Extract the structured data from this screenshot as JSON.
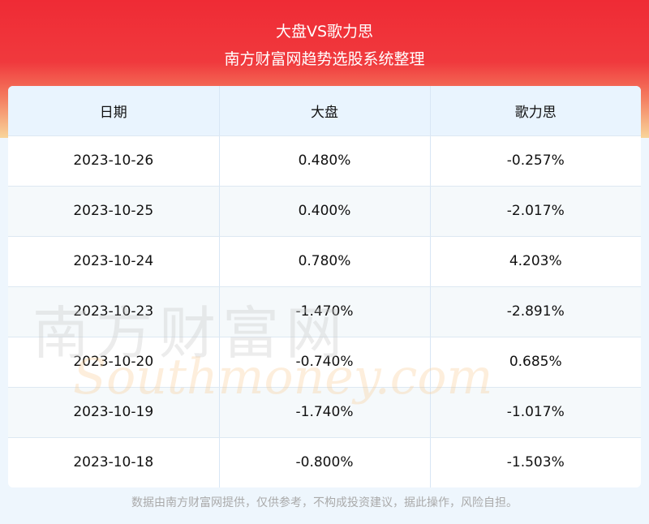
{
  "header": {
    "title": "大盘VS歌力思",
    "subtitle": "南方财富网趋势选股系统整理"
  },
  "table": {
    "columns": [
      "日期",
      "大盘",
      "歌力思"
    ],
    "rows": [
      [
        "2023-10-26",
        "0.480%",
        "-0.257%"
      ],
      [
        "2023-10-25",
        "0.400%",
        "-2.017%"
      ],
      [
        "2023-10-24",
        "0.780%",
        "4.203%"
      ],
      [
        "2023-10-23",
        "-1.470%",
        "-2.891%"
      ],
      [
        "2023-10-20",
        "-0.740%",
        "0.685%"
      ],
      [
        "2023-10-19",
        "-1.740%",
        "-1.017%"
      ],
      [
        "2023-10-18",
        "-0.800%",
        "-1.503%"
      ]
    ]
  },
  "watermark": {
    "cn": "南方财富网",
    "en": "Southmoney.com"
  },
  "footer": "数据由南方财富网提供，仅供参考，不构成投资建议，据此操作，风险自担。"
}
